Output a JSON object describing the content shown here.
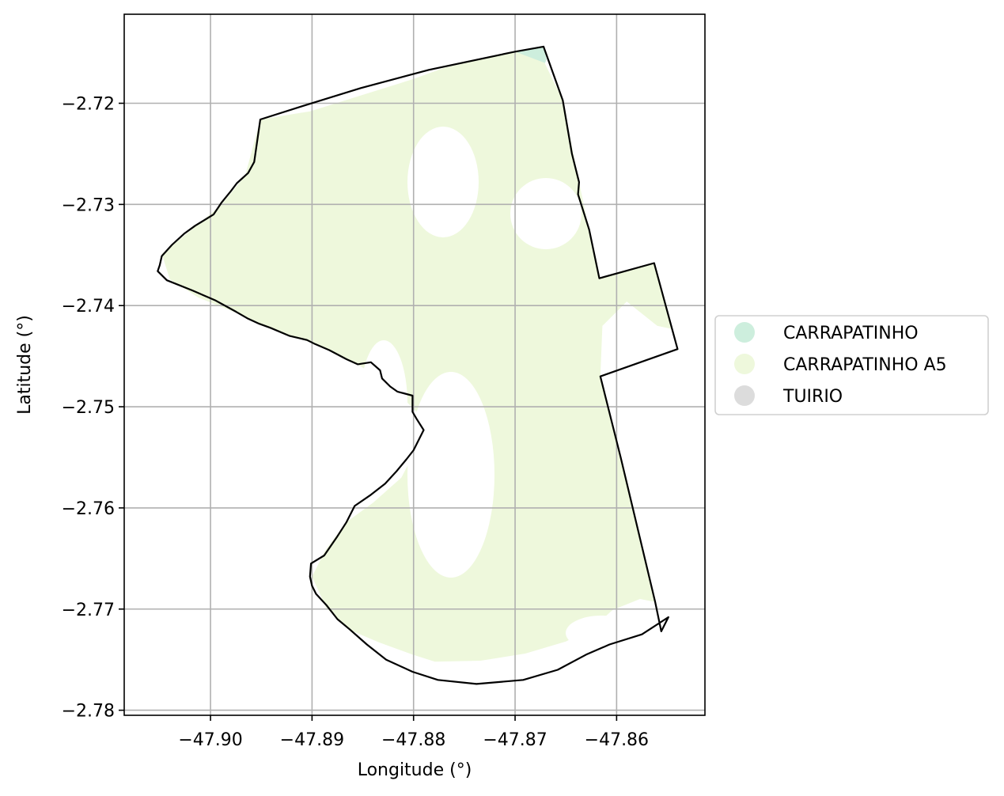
{
  "chart_data": {
    "type": "map",
    "xlabel": "Longitude (°)",
    "ylabel": "Latitude (°)",
    "xlim": [
      -47.9085,
      -47.8513
    ],
    "ylim": [
      -2.7805,
      -2.7112
    ],
    "x_ticks": [
      -47.9,
      -47.89,
      -47.88,
      -47.87,
      -47.86
    ],
    "x_tick_labels": [
      "−47.90",
      "−47.89",
      "−47.88",
      "−47.87",
      "−47.86"
    ],
    "y_ticks": [
      -2.72,
      -2.73,
      -2.74,
      -2.75,
      -2.76,
      -2.77,
      -2.78
    ],
    "y_tick_labels": [
      "−2.72",
      "−2.73",
      "−2.74",
      "−2.75",
      "−2.76",
      "−2.77",
      "−2.78"
    ],
    "grid": true,
    "legend_position": "right",
    "legend": [
      {
        "label": "CARRAPATINHO",
        "color": "#cdeedd"
      },
      {
        "label": "CARRAPATINHO A5",
        "color": "#eef8dc"
      },
      {
        "label": "TUIRIO",
        "color": "#dcdcdc"
      }
    ],
    "boundary": [
      [
        -47.8951,
        -2.7216
      ],
      [
        -47.891,
        -2.7203
      ],
      [
        -47.8852,
        -2.7185
      ],
      [
        -47.8785,
        -2.7167
      ],
      [
        -47.87,
        -2.7149
      ],
      [
        -47.8672,
        -2.7144
      ],
      [
        -47.8653,
        -2.7197
      ],
      [
        -47.8644,
        -2.725
      ],
      [
        -47.8637,
        -2.7278
      ],
      [
        -47.8638,
        -2.729
      ],
      [
        -47.8627,
        -2.7325
      ],
      [
        -47.8617,
        -2.7373
      ],
      [
        -47.8563,
        -2.7358
      ],
      [
        -47.854,
        -2.7443
      ],
      [
        -47.8616,
        -2.747
      ],
      [
        -47.8596,
        -2.755
      ],
      [
        -47.8577,
        -2.763
      ],
      [
        -47.8562,
        -2.7693
      ],
      [
        -47.8556,
        -2.7722
      ],
      [
        -47.8549,
        -2.7708
      ],
      [
        -47.8575,
        -2.7725
      ],
      [
        -47.8607,
        -2.7735
      ],
      [
        -47.863,
        -2.7745
      ],
      [
        -47.8658,
        -2.776
      ],
      [
        -47.8692,
        -2.777
      ],
      [
        -47.8738,
        -2.7774
      ],
      [
        -47.8776,
        -2.777
      ],
      [
        -47.8801,
        -2.7762
      ],
      [
        -47.8827,
        -2.775
      ],
      [
        -47.8846,
        -2.7735
      ],
      [
        -47.8863,
        -2.772
      ],
      [
        -47.8875,
        -2.771
      ],
      [
        -47.8886,
        -2.7696
      ],
      [
        -47.8896,
        -2.7685
      ],
      [
        -47.89,
        -2.7677
      ],
      [
        -47.8902,
        -2.7668
      ],
      [
        -47.8901,
        -2.7655
      ],
      [
        -47.8888,
        -2.7647
      ],
      [
        -47.8875,
        -2.7628
      ],
      [
        -47.8866,
        -2.7614
      ],
      [
        -47.8858,
        -2.7598
      ],
      [
        -47.8842,
        -2.7587
      ],
      [
        -47.8828,
        -2.7576
      ],
      [
        -47.8817,
        -2.7564
      ],
      [
        -47.8807,
        -2.7552
      ],
      [
        -47.88,
        -2.7543
      ],
      [
        -47.879,
        -2.7523
      ],
      [
        -47.8797,
        -2.7512
      ],
      [
        -47.8801,
        -2.7505
      ],
      [
        -47.8801,
        -2.7489
      ],
      [
        -47.8816,
        -2.7485
      ],
      [
        -47.8823,
        -2.748
      ],
      [
        -47.8831,
        -2.7472
      ],
      [
        -47.8833,
        -2.7464
      ],
      [
        -47.8842,
        -2.7456
      ],
      [
        -47.8855,
        -2.7458
      ],
      [
        -47.8866,
        -2.7453
      ],
      [
        -47.8883,
        -2.7444
      ],
      [
        -47.8897,
        -2.7438
      ],
      [
        -47.8905,
        -2.7434
      ],
      [
        -47.8922,
        -2.743
      ],
      [
        -47.8941,
        -2.7422
      ],
      [
        -47.8952,
        -2.7418
      ],
      [
        -47.8963,
        -2.7413
      ],
      [
        -47.8975,
        -2.7406
      ],
      [
        -47.8995,
        -2.7395
      ],
      [
        -47.9018,
        -2.7385
      ],
      [
        -47.9043,
        -2.7375
      ],
      [
        -47.9052,
        -2.7366
      ],
      [
        -47.905,
        -2.736
      ],
      [
        -47.9048,
        -2.7351
      ],
      [
        -47.9038,
        -2.734
      ],
      [
        -47.9026,
        -2.7329
      ],
      [
        -47.9015,
        -2.7321
      ],
      [
        -47.8997,
        -2.731
      ],
      [
        -47.8989,
        -2.7298
      ],
      [
        -47.898,
        -2.7287
      ],
      [
        -47.8974,
        -2.7279
      ],
      [
        -47.8963,
        -2.7269
      ],
      [
        -47.8957,
        -2.7258
      ],
      [
        -47.8951,
        -2.7216
      ]
    ],
    "areas": [
      {
        "legend": "CARRAPATINHO",
        "polygon": [
          [
            -47.87,
            -2.7149
          ],
          [
            -47.8672,
            -2.7144
          ],
          [
            -47.8669,
            -2.7157
          ],
          [
            -47.8672,
            -2.7163
          ]
        ]
      },
      {
        "legend": "CARRAPATINHO A5",
        "polygon": [
          [
            -47.877,
            -2.7165
          ],
          [
            -47.87,
            -2.7149
          ],
          [
            -47.8671,
            -2.716
          ],
          [
            -47.8653,
            -2.7197
          ],
          [
            -47.8637,
            -2.7278
          ],
          [
            -47.8617,
            -2.7373
          ],
          [
            -47.8563,
            -2.7358
          ],
          [
            -47.8546,
            -2.7423
          ],
          [
            -47.856,
            -2.742
          ],
          [
            -47.859,
            -2.7396
          ],
          [
            -47.8614,
            -2.742
          ],
          [
            -47.8616,
            -2.747
          ],
          [
            -47.8596,
            -2.755
          ],
          [
            -47.8577,
            -2.763
          ],
          [
            -47.8562,
            -2.7693
          ],
          [
            -47.8577,
            -2.769
          ],
          [
            -47.8604,
            -2.7701
          ],
          [
            -47.8624,
            -2.7719
          ],
          [
            -47.865,
            -2.7732
          ],
          [
            -47.869,
            -2.7744
          ],
          [
            -47.8734,
            -2.7751
          ],
          [
            -47.8779,
            -2.7752
          ],
          [
            -47.8801,
            -2.7745
          ],
          [
            -47.8834,
            -2.7733
          ],
          [
            -47.8862,
            -2.7721
          ],
          [
            -47.8886,
            -2.7699
          ],
          [
            -47.89,
            -2.7668
          ],
          [
            -47.8887,
            -2.7642
          ],
          [
            -47.8866,
            -2.7614
          ],
          [
            -47.884,
            -2.7595
          ],
          [
            -47.8812,
            -2.757
          ],
          [
            -47.8799,
            -2.7545
          ],
          [
            -47.879,
            -2.7523
          ],
          [
            -47.8797,
            -2.7505
          ],
          [
            -47.8824,
            -2.7478
          ],
          [
            -47.886,
            -2.7455
          ],
          [
            -47.89,
            -2.7437
          ],
          [
            -47.894,
            -2.7423
          ],
          [
            -47.8975,
            -2.7407
          ],
          [
            -47.9012,
            -2.7392
          ],
          [
            -47.904,
            -2.7374
          ],
          [
            -47.9048,
            -2.7349
          ],
          [
            -47.902,
            -2.7326
          ],
          [
            -47.899,
            -2.7301
          ],
          [
            -47.8966,
            -2.7272
          ],
          [
            -47.8951,
            -2.7216
          ],
          [
            -47.8902,
            -2.7208
          ],
          [
            -47.8851,
            -2.7192
          ],
          [
            -47.88,
            -2.7176
          ]
        ]
      }
    ]
  }
}
